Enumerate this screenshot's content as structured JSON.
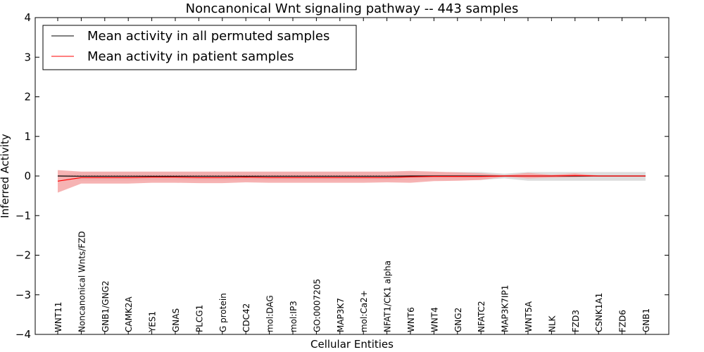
{
  "chart_data": {
    "type": "line",
    "title": "Noncanonical Wnt signaling pathway -- 443 samples",
    "xlabel": "Cellular Entities",
    "ylabel": "Inferred Activity",
    "ylim": [
      -4,
      4
    ],
    "yticks": [
      -4,
      -3,
      -2,
      -1,
      0,
      1,
      2,
      3,
      4
    ],
    "ytick_labels": [
      "−4",
      "−3",
      "−2",
      "−1",
      "0",
      "1",
      "2",
      "3",
      "4"
    ],
    "categories": [
      "WNT11",
      "Noncanonical Wnts/FZD",
      "GNB1/GNG2",
      "CAMK2A",
      "YES1",
      "GNAS",
      "PLCG1",
      "G protein",
      "CDC42",
      "mol:DAG",
      "mol:IP3",
      "GO:0007205",
      "MAP3K7",
      "mol:Ca2+",
      "NFAT1/CK1 alpha",
      "WNT6",
      "WNT4",
      "GNG2",
      "NFATC2",
      "MAP3K7IP1",
      "WNT5A",
      "NLK",
      "FZD3",
      "CSNK1A1",
      "FZD6",
      "GNB1"
    ],
    "legend": {
      "placement": "top-left",
      "entries": [
        "Mean activity in all permuted samples",
        "Mean activity in patient samples"
      ]
    },
    "series": [
      {
        "name": "Mean activity in all permuted samples",
        "color": "#000000",
        "band_color": "#d9d9d9",
        "values": [
          0,
          -0.005,
          -0.005,
          -0.005,
          -0.005,
          -0.005,
          -0.005,
          -0.005,
          -0.005,
          -0.005,
          -0.005,
          -0.005,
          -0.005,
          -0.005,
          -0.005,
          0,
          0,
          0,
          0,
          0,
          0,
          0,
          0,
          0,
          0,
          0
        ],
        "lower": [
          -0.02,
          -0.12,
          -0.12,
          -0.12,
          -0.11,
          -0.11,
          -0.11,
          -0.11,
          -0.11,
          -0.11,
          -0.11,
          -0.11,
          -0.11,
          -0.11,
          -0.11,
          -0.1,
          -0.1,
          -0.1,
          -0.1,
          -0.06,
          -0.12,
          -0.12,
          -0.12,
          -0.12,
          -0.12,
          -0.12
        ],
        "upper": [
          0.02,
          0.1,
          0.1,
          0.1,
          0.1,
          0.1,
          0.1,
          0.1,
          0.1,
          0.1,
          0.1,
          0.1,
          0.1,
          0.1,
          0.1,
          0.1,
          0.1,
          0.1,
          0.1,
          0.06,
          0.1,
          0.1,
          0.1,
          0.1,
          0.1,
          0.1
        ]
      },
      {
        "name": "Mean activity in patient samples",
        "color": "#ff0000",
        "band_color": "#f4a6a6",
        "values": [
          -0.13,
          -0.04,
          -0.04,
          -0.04,
          -0.03,
          -0.03,
          -0.04,
          -0.04,
          -0.03,
          -0.04,
          -0.04,
          -0.04,
          -0.04,
          -0.04,
          -0.04,
          -0.02,
          -0.01,
          -0.01,
          -0.01,
          0,
          0,
          0,
          0.01,
          0,
          0,
          0
        ],
        "lower": [
          -0.42,
          -0.19,
          -0.19,
          -0.19,
          -0.17,
          -0.17,
          -0.18,
          -0.18,
          -0.16,
          -0.17,
          -0.17,
          -0.17,
          -0.17,
          -0.17,
          -0.16,
          -0.17,
          -0.13,
          -0.12,
          -0.1,
          -0.02,
          -0.06,
          -0.04,
          -0.03,
          -0.01,
          -0.01,
          -0.01
        ],
        "upper": [
          0.15,
          0.11,
          0.11,
          0.11,
          0.11,
          0.11,
          0.11,
          0.11,
          0.11,
          0.11,
          0.11,
          0.11,
          0.11,
          0.11,
          0.11,
          0.13,
          0.11,
          0.09,
          0.07,
          0.02,
          0.08,
          0.03,
          0.07,
          0.01,
          0.01,
          0.01
        ]
      }
    ]
  }
}
